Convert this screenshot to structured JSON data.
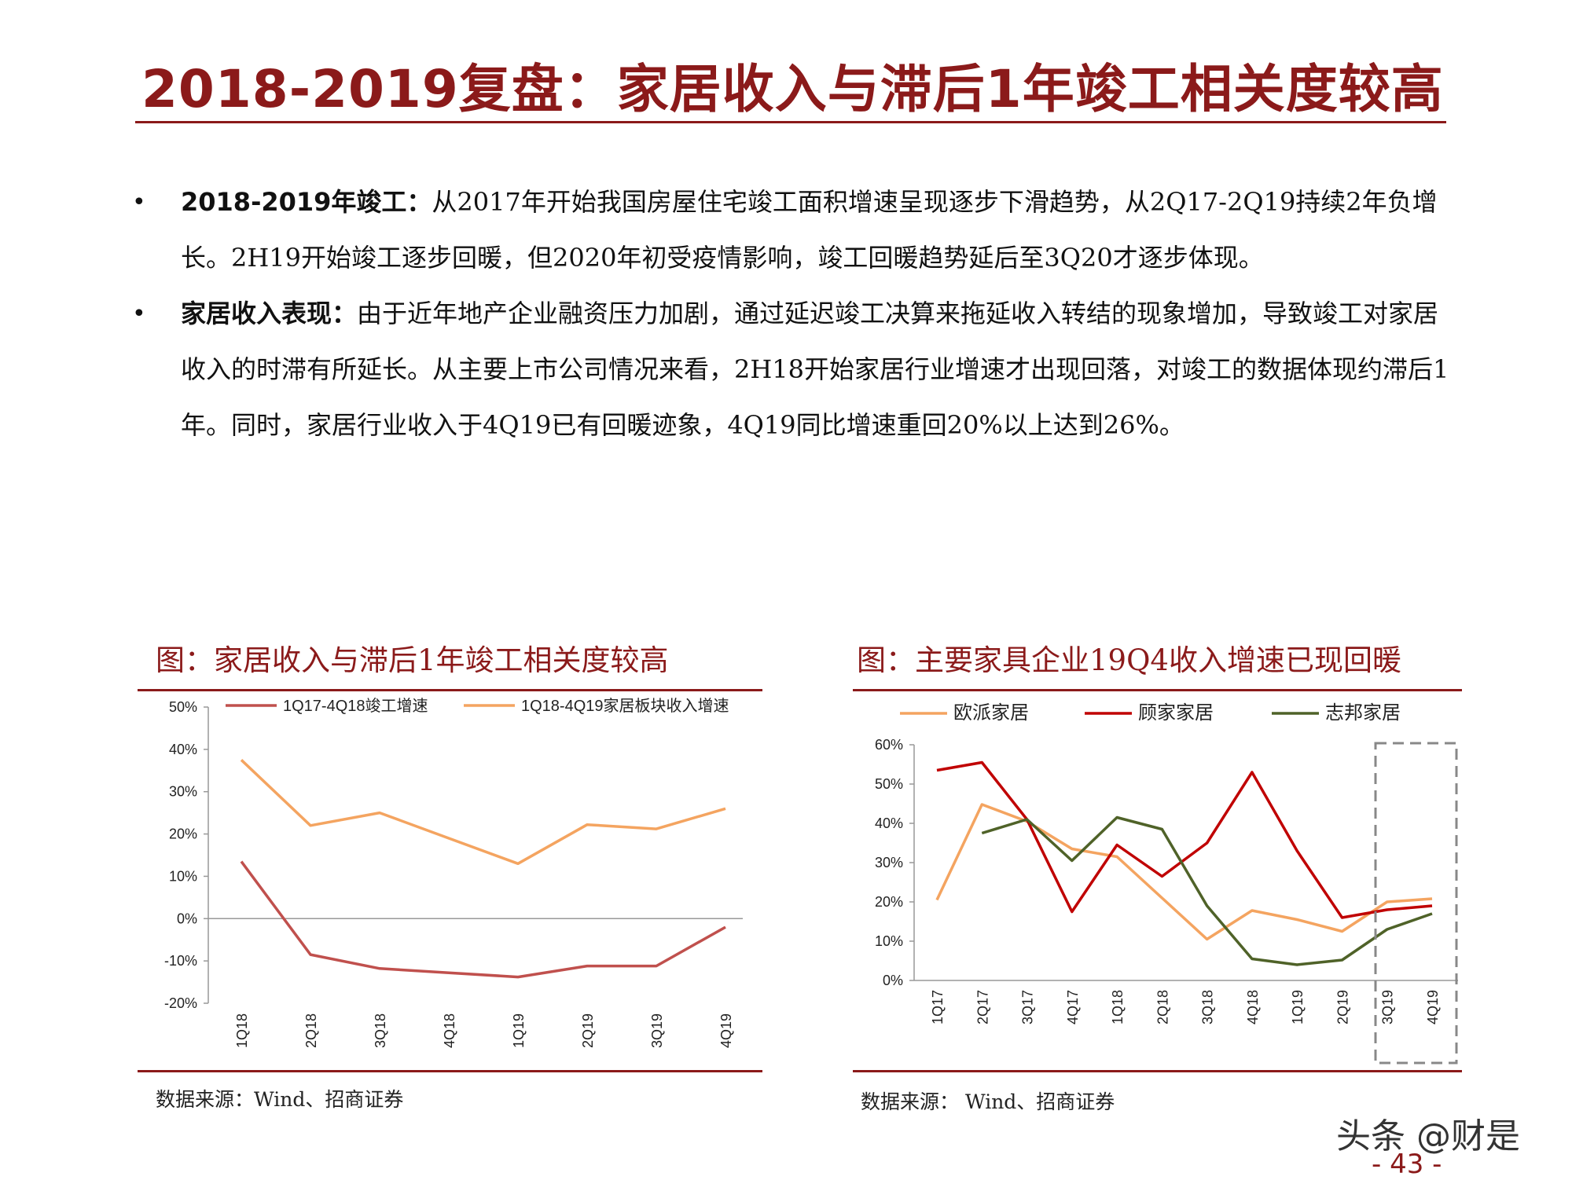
{
  "title": "2018-2019复盘：家居收入与滞后1年竣工相关度较高",
  "bullets": [
    {
      "lead": "2018-2019年竣工：",
      "text": "从2017年开始我国房屋住宅竣工面积增速呈现逐步下滑趋势，从2Q17-2Q19持续2年负增长。2H19开始竣工逐步回暖，但2020年初受疫情影响，竣工回暖趋势延后至3Q20才逐步体现。"
    },
    {
      "lead": "家居收入表现：",
      "text": "由于近年地产企业融资压力加剧，通过延迟竣工决算来拖延收入转结的现象增加，导致竣工对家居收入的时滞有所延长。从主要上市公司情况来看，2H18开始家居行业增速才出现回落，对竣工的数据体现约滞后1年。同时，家居行业收入于4Q19已有回暖迹象，4Q19同比增速重回20%以上达到26%。"
    }
  ],
  "figure1": {
    "title": "图：家居收入与滞后1年竣工相关度较高",
    "source": "数据来源：Wind、招商证券"
  },
  "figure2": {
    "title": "图：主要家具企业19Q4收入增速已现回暖",
    "source": "数据来源： Wind、招商证券"
  },
  "watermark": "头条 @财是",
  "page_number": "- 43 -",
  "chart_data": [
    {
      "type": "line",
      "categories": [
        "1Q18",
        "2Q18",
        "3Q18",
        "4Q18",
        "1Q19",
        "2Q19",
        "3Q19",
        "4Q19"
      ],
      "yticks": [
        "50%",
        "40%",
        "30%",
        "20%",
        "10%",
        "0%",
        "-10%",
        "-20%"
      ],
      "ylim": [
        -20,
        50
      ],
      "legend": "top",
      "series": [
        {
          "name": "1Q17-4Q18竣工增速",
          "color": "#c0504d",
          "values": [
            13.5,
            -8.5,
            -11.8,
            -12.8,
            -13.8,
            -11.2,
            -11.2,
            -2
          ]
        },
        {
          "name": "1Q18-4Q19家居板块收入增速",
          "color": "#f4a460",
          "values": [
            37.5,
            22,
            25,
            19,
            13,
            22.2,
            21.2,
            26
          ]
        }
      ]
    },
    {
      "type": "line",
      "categories": [
        "1Q17",
        "2Q17",
        "3Q17",
        "4Q17",
        "1Q18",
        "2Q18",
        "3Q18",
        "4Q18",
        "1Q19",
        "2Q19",
        "3Q19",
        "4Q19"
      ],
      "yticks": [
        "60%",
        "50%",
        "40%",
        "30%",
        "20%",
        "10%",
        "0%"
      ],
      "ylim": [
        0,
        60
      ],
      "legend": "top",
      "highlight": [
        "3Q19",
        "4Q19"
      ],
      "series": [
        {
          "name": "欧派家居",
          "color": "#f4a460",
          "values": [
            20.5,
            44.8,
            40.5,
            33.5,
            31.5,
            21,
            10.5,
            17.8,
            15.5,
            12.5,
            20,
            20.8
          ]
        },
        {
          "name": "顾家家居",
          "color": "#c00000",
          "values": [
            53.5,
            55.5,
            41,
            17.5,
            34.5,
            26.5,
            35,
            53,
            33,
            16,
            18,
            19
          ]
        },
        {
          "name": "志邦家居",
          "color": "#4f6228",
          "values": [
            null,
            37.5,
            41,
            30.5,
            41.5,
            38.5,
            19,
            5.5,
            4,
            5.2,
            13,
            17
          ]
        }
      ]
    }
  ]
}
